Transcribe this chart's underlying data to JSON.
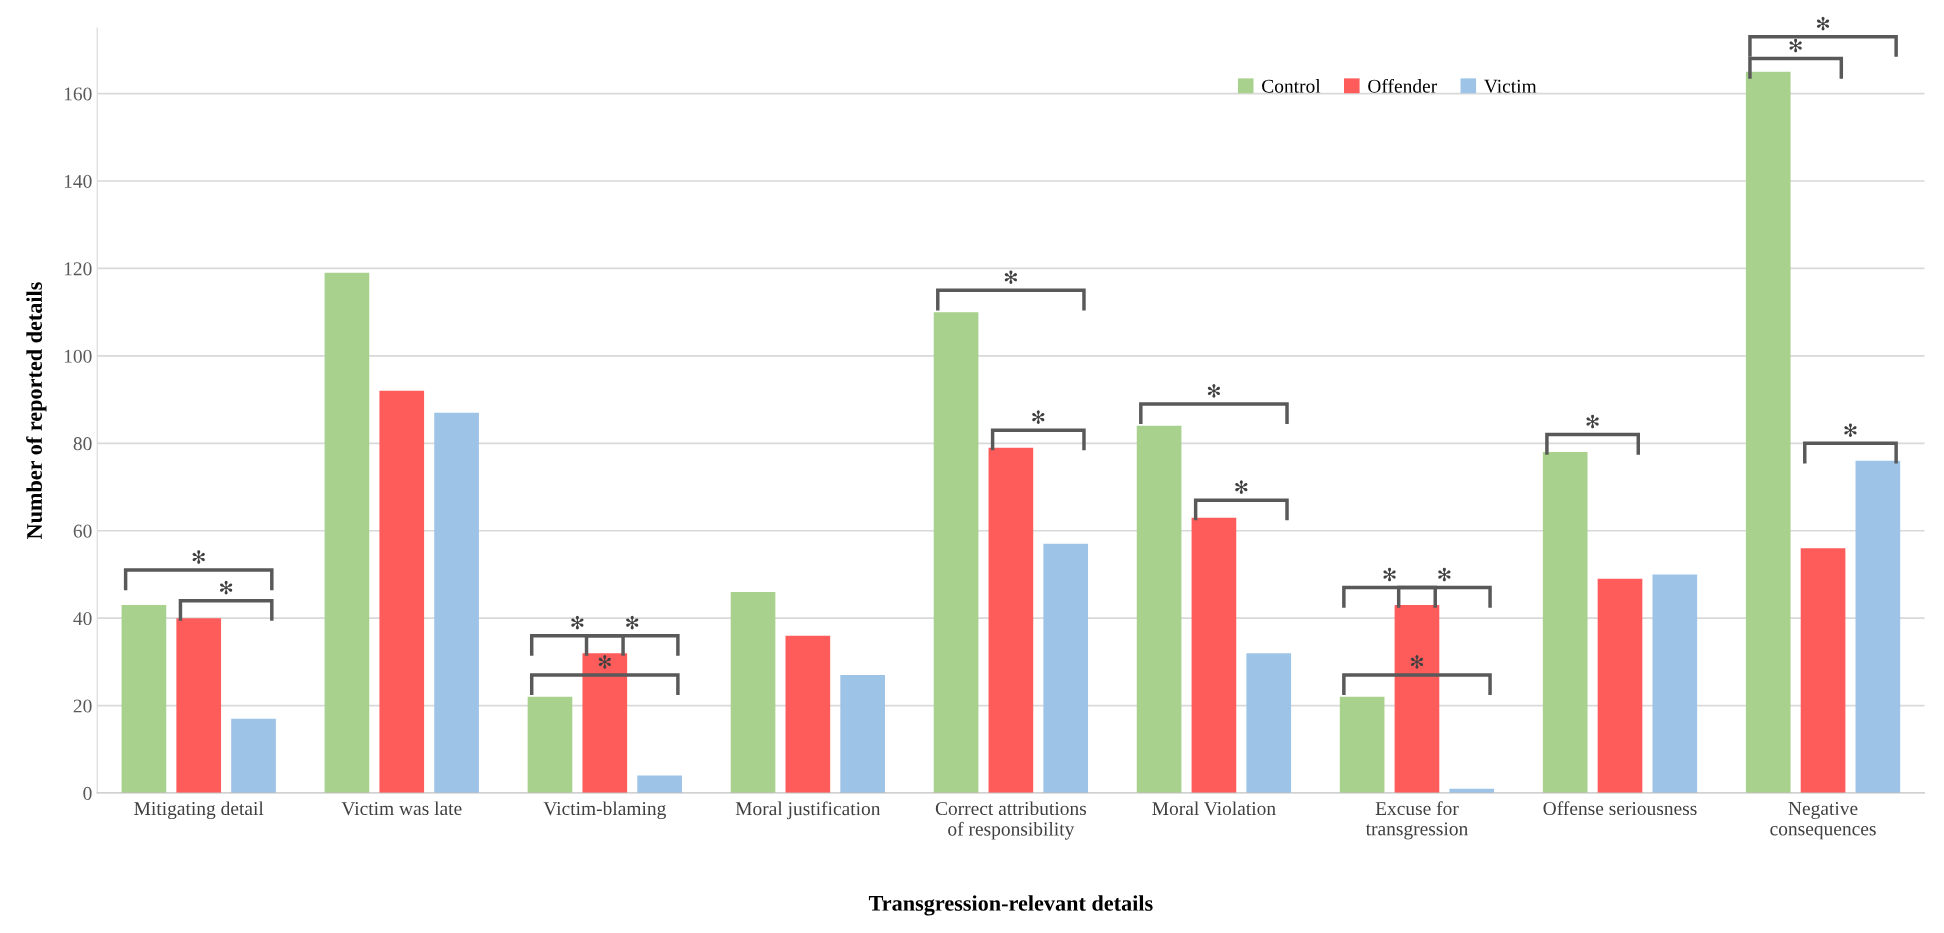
{
  "chart_data": {
    "type": "bar",
    "xlabel": "Transgression-relevant details",
    "ylabel": "Number of reported details",
    "categories": [
      "Mitigating detail",
      "Victim was late",
      "Victim-blaming",
      "Moral justification",
      "Correct attributions\nof responsibility",
      "Moral Violation",
      "Excuse for\ntransgression",
      "Offense seriousness",
      "Negative\nconsequences"
    ],
    "series": [
      {
        "name": "Control",
        "color": "#a9d18e",
        "values": [
          43,
          119,
          22,
          46,
          110,
          84,
          22,
          78,
          165
        ]
      },
      {
        "name": "Offender",
        "color": "#fe5b5b",
        "values": [
          40,
          92,
          32,
          36,
          79,
          63,
          43,
          49,
          56
        ]
      },
      {
        "name": "Victim",
        "color": "#9dc3e6",
        "values": [
          17,
          87,
          4,
          27,
          57,
          32,
          1,
          50,
          76
        ]
      }
    ],
    "ylim": [
      0,
      175
    ],
    "yticks": [
      0,
      20,
      40,
      60,
      80,
      100,
      120,
      140,
      160
    ],
    "grid": "y",
    "legend": "top right",
    "annotations": [
      "✻",
      "✻",
      "✻",
      "✻",
      "✻",
      "✻",
      "✻",
      "✻",
      "✻",
      "✻",
      "✻",
      "✻",
      "✻",
      "✻",
      "✻",
      "✻"
    ]
  }
}
